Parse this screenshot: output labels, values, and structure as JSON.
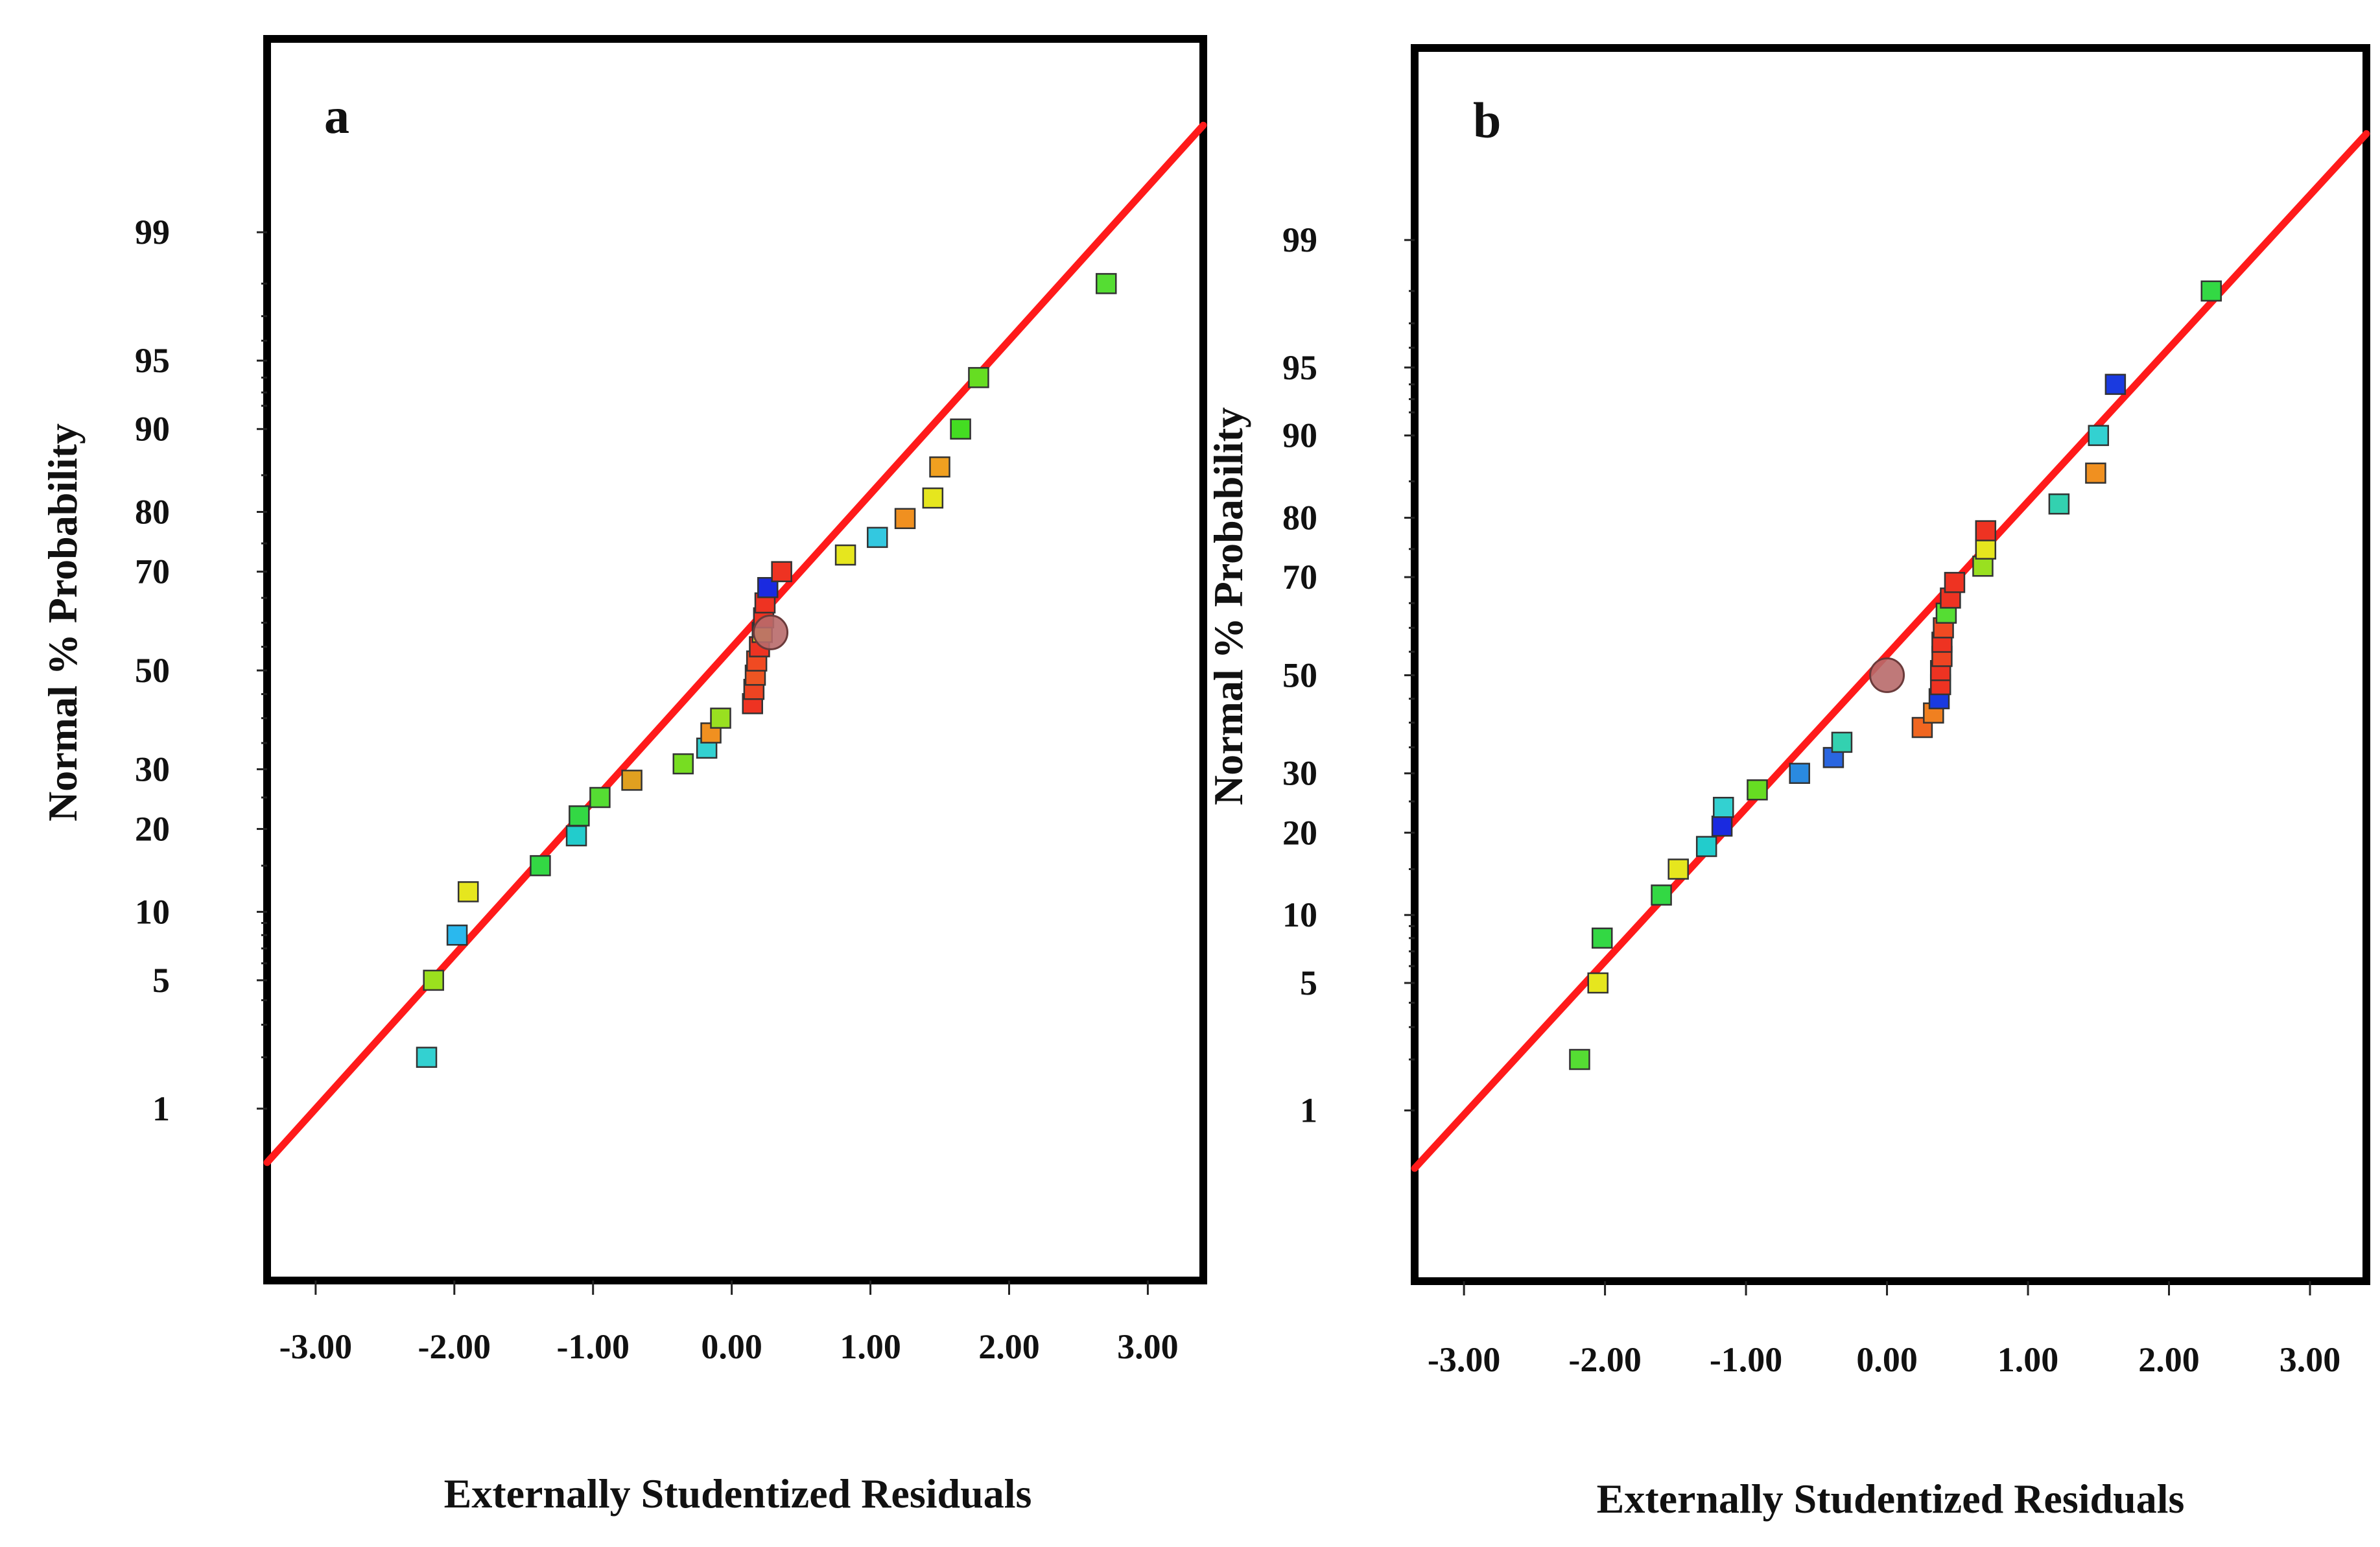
{
  "figure": {
    "colors": {
      "fit_line": "#ff1a1a",
      "frame": "#000000",
      "highlight_point": "#b86a6a"
    }
  },
  "chart_data": [
    {
      "type": "scatter",
      "panel_label": "a",
      "xlabel": "Externally Studentized Residuals",
      "ylabel": "Normal % Probability",
      "x_ticks": [
        "-3.00",
        "-2.00",
        "-1.00",
        "0.00",
        "1.00",
        "2.00",
        "3.00"
      ],
      "y_ticks": [
        "1",
        "5",
        "10",
        "20",
        "30",
        "50",
        "70",
        "80",
        "90",
        "95",
        "99"
      ],
      "xlim": [
        -3.35,
        3.4
      ],
      "ylim_probability": [
        0.06,
        99.96
      ],
      "y_scale": "normal-probability",
      "fit_line": {
        "x": [
          -3.35,
          3.4
        ],
        "p": [
          0.45,
          99.81
        ]
      },
      "highlight_point": {
        "x": 0.28,
        "p": 58
      },
      "series": [
        {
          "x": -2.2,
          "p": 2,
          "color": "#33d1d1"
        },
        {
          "x": -2.15,
          "p": 5,
          "color": "#9be01e"
        },
        {
          "x": -1.98,
          "p": 8,
          "color": "#2ab8ee"
        },
        {
          "x": -1.9,
          "p": 12,
          "color": "#e6e61e"
        },
        {
          "x": -1.38,
          "p": 15,
          "color": "#33d844"
        },
        {
          "x": -1.12,
          "p": 19,
          "color": "#22cccc"
        },
        {
          "x": -1.1,
          "p": 22,
          "color": "#33d844"
        },
        {
          "x": -0.95,
          "p": 25,
          "color": "#55dd33"
        },
        {
          "x": -0.72,
          "p": 28,
          "color": "#e0a020"
        },
        {
          "x": -0.35,
          "p": 31,
          "color": "#77dd22"
        },
        {
          "x": -0.18,
          "p": 34,
          "color": "#33d1d1"
        },
        {
          "x": -0.15,
          "p": 37,
          "color": "#f09020"
        },
        {
          "x": -0.08,
          "p": 40,
          "color": "#99e020"
        },
        {
          "x": 0.15,
          "p": 43,
          "color": "#ee3322"
        },
        {
          "x": 0.16,
          "p": 46,
          "color": "#ee4422"
        },
        {
          "x": 0.17,
          "p": 49,
          "color": "#ee5522"
        },
        {
          "x": 0.18,
          "p": 52,
          "color": "#f04a22"
        },
        {
          "x": 0.2,
          "p": 55,
          "color": "#ee3322"
        },
        {
          "x": 0.22,
          "p": 58,
          "color": "#e8e020"
        },
        {
          "x": 0.23,
          "p": 61,
          "color": "#ee3322"
        },
        {
          "x": 0.24,
          "p": 64,
          "color": "#ee3322"
        },
        {
          "x": 0.26,
          "p": 67,
          "color": "#1a2ae0"
        },
        {
          "x": 0.36,
          "p": 70,
          "color": "#ee3322"
        },
        {
          "x": 0.82,
          "p": 73,
          "color": "#e6e61e"
        },
        {
          "x": 1.05,
          "p": 76,
          "color": "#33c8e0"
        },
        {
          "x": 1.25,
          "p": 79,
          "color": "#f09020"
        },
        {
          "x": 1.45,
          "p": 82,
          "color": "#e6e61e"
        },
        {
          "x": 1.5,
          "p": 86,
          "color": "#f0a020"
        },
        {
          "x": 1.65,
          "p": 90,
          "color": "#44dd22"
        },
        {
          "x": 1.78,
          "p": 94,
          "color": "#66dd22"
        },
        {
          "x": 2.7,
          "p": 98,
          "color": "#55dd33"
        }
      ]
    },
    {
      "type": "scatter",
      "panel_label": "b",
      "xlabel": "Externally Studentized Residuals",
      "ylabel": "Normal % Probability",
      "x_ticks": [
        "-3.00",
        "-2.00",
        "-1.00",
        "0.00",
        "1.00",
        "2.00",
        "3.00"
      ],
      "y_ticks": [
        "1",
        "5",
        "10",
        "20",
        "30",
        "50",
        "70",
        "80",
        "90",
        "95",
        "99"
      ],
      "xlim": [
        -3.35,
        3.4
      ],
      "ylim_probability": [
        0.06,
        99.96
      ],
      "y_scale": "normal-probability",
      "fit_line": {
        "x": [
          -3.35,
          3.4
        ],
        "p": [
          0.42,
          99.81
        ]
      },
      "highlight_point": {
        "x": 0.0,
        "p": 50
      },
      "series": [
        {
          "x": -2.18,
          "p": 2,
          "color": "#55dd33"
        },
        {
          "x": -2.05,
          "p": 5,
          "color": "#e6e61e"
        },
        {
          "x": -2.02,
          "p": 8,
          "color": "#33d844"
        },
        {
          "x": -1.6,
          "p": 12,
          "color": "#33d844"
        },
        {
          "x": -1.48,
          "p": 15,
          "color": "#e6e61e"
        },
        {
          "x": -1.28,
          "p": 18,
          "color": "#22cccc"
        },
        {
          "x": -1.17,
          "p": 21,
          "color": "#1a2ae0"
        },
        {
          "x": -1.16,
          "p": 24,
          "color": "#33d1d1"
        },
        {
          "x": -0.92,
          "p": 27,
          "color": "#66dd22"
        },
        {
          "x": -0.62,
          "p": 30,
          "color": "#2a8ae0"
        },
        {
          "x": -0.38,
          "p": 33,
          "color": "#2a66e0"
        },
        {
          "x": -0.32,
          "p": 36,
          "color": "#33d1b0"
        },
        {
          "x": 0.25,
          "p": 39,
          "color": "#f06620"
        },
        {
          "x": 0.33,
          "p": 42,
          "color": "#f08020"
        },
        {
          "x": 0.37,
          "p": 45,
          "color": "#1a3ae0"
        },
        {
          "x": 0.38,
          "p": 48,
          "color": "#ee3322"
        },
        {
          "x": 0.38,
          "p": 51,
          "color": "#ee3322"
        },
        {
          "x": 0.39,
          "p": 54,
          "color": "#ee4422"
        },
        {
          "x": 0.39,
          "p": 57,
          "color": "#ee3322"
        },
        {
          "x": 0.4,
          "p": 60,
          "color": "#f04a22"
        },
        {
          "x": 0.42,
          "p": 63,
          "color": "#55dd33"
        },
        {
          "x": 0.45,
          "p": 66,
          "color": "#ee3322"
        },
        {
          "x": 0.48,
          "p": 69,
          "color": "#ee3322"
        },
        {
          "x": 0.68,
          "p": 72,
          "color": "#99e020"
        },
        {
          "x": 0.7,
          "p": 75,
          "color": "#e6e61e"
        },
        {
          "x": 0.7,
          "p": 78,
          "color": "#ee3322"
        },
        {
          "x": 1.22,
          "p": 82,
          "color": "#33d1b0"
        },
        {
          "x": 1.48,
          "p": 86,
          "color": "#f09020"
        },
        {
          "x": 1.5,
          "p": 90,
          "color": "#33d1d1"
        },
        {
          "x": 1.62,
          "p": 94,
          "color": "#1a3ae0"
        },
        {
          "x": 2.3,
          "p": 98,
          "color": "#33d844"
        }
      ]
    }
  ]
}
